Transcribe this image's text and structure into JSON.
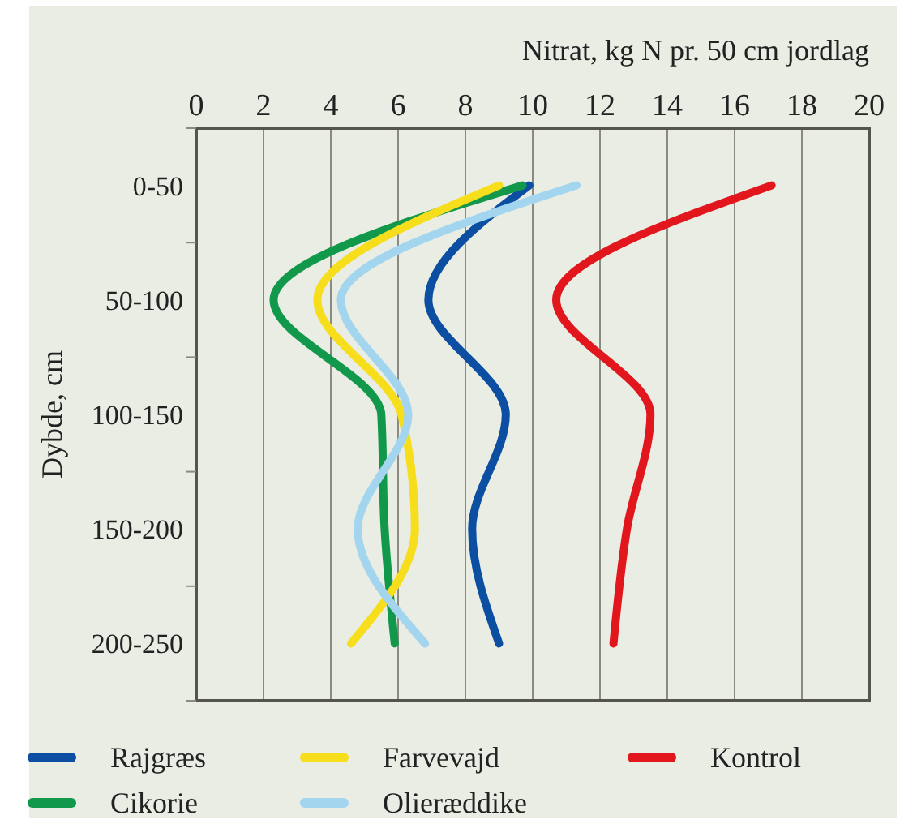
{
  "chart_data": {
    "type": "line",
    "orientation": "horizontal",
    "xlabel": "Nitrat, kg N pr. 50 cm jordlag",
    "ylabel": "Dybde, cm",
    "categories": [
      "0-50",
      "50-100",
      "100-150",
      "150-200",
      "200-250"
    ],
    "xlim": [
      0,
      20
    ],
    "xticks": [
      0,
      2,
      4,
      6,
      8,
      10,
      12,
      14,
      16,
      18,
      20
    ],
    "grid": "x",
    "legend": "bottom",
    "marker": "none",
    "line_style": "solid",
    "series": [
      {
        "name": "Rajgræs",
        "color": "#0b4ea2",
        "values": [
          9.9,
          6.9,
          9.2,
          8.2,
          9
        ]
      },
      {
        "name": "Cikorie",
        "color": "#12984a",
        "values": [
          9.7,
          2.3,
          5.5,
          5.6,
          5.9
        ]
      },
      {
        "name": "Farvevajd",
        "color": "#f7de1c",
        "values": [
          9,
          3.6,
          6.1,
          6.5,
          4.6
        ]
      },
      {
        "name": "Olieræddike",
        "color": "#a3d6ee",
        "values": [
          11.3,
          4.3,
          6.3,
          4.8,
          6.8
        ]
      },
      {
        "name": "Kontrol",
        "color": "#e2161d",
        "values": [
          17.1,
          10.7,
          13.5,
          12.8,
          12.4
        ]
      }
    ]
  }
}
